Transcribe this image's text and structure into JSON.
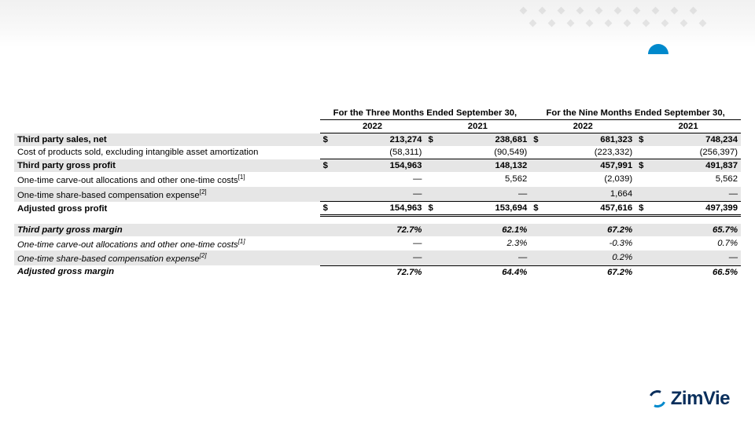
{
  "palette": {
    "row_band": "#e6e6e6",
    "text": "#000000",
    "border": "#000000",
    "accent_blue": "#0089cc",
    "logo_navy": "#0a2f5c",
    "background": "#ffffff"
  },
  "typography": {
    "base_pt": 11.3,
    "font_family": "Arial"
  },
  "headers": {
    "three_months": "For the Three Months Ended September 30,",
    "nine_months": "For the Nine Months Ended September 30,",
    "y2022": "2022",
    "y2021": "2021"
  },
  "currency": "$",
  "dash": "—",
  "rows": {
    "sales": {
      "label": "Third party sales, net",
      "vals": [
        "213,274",
        "238,681",
        "681,323",
        "748,234"
      ],
      "cur": [
        true,
        true,
        true,
        true
      ],
      "bold": true,
      "band": true
    },
    "cogs": {
      "label": "Cost of products sold, excluding intangible asset amortization",
      "vals": [
        "(58,311)",
        "(90,549)",
        "(223,332)",
        "(256,397)"
      ],
      "cur": [
        false,
        false,
        false,
        false
      ],
      "bold": false,
      "band": false,
      "underline": true
    },
    "gp": {
      "label": "Third party gross profit",
      "vals": [
        "154,963",
        "148,132",
        "457,991",
        "491,837"
      ],
      "cur": [
        true,
        false,
        false,
        true
      ],
      "bold": true,
      "band": true,
      "topline": true
    },
    "carve": {
      "label": "One-time carve-out allocations and other one-time costs",
      "sup": "[1]",
      "vals": [
        "—",
        "5,562",
        "(2,039)",
        "5,562"
      ],
      "cur": [
        false,
        false,
        false,
        false
      ],
      "bold": false,
      "band": false
    },
    "sbc": {
      "label": "One-time share-based compensation expense",
      "sup": "[2]",
      "vals": [
        "—",
        "—",
        "1,664",
        "—"
      ],
      "cur": [
        false,
        false,
        false,
        false
      ],
      "bold": false,
      "band": true,
      "underline": true
    },
    "agp": {
      "label": "Adjusted gross profit",
      "vals": [
        "154,963",
        "153,694",
        "457,616",
        "497,399"
      ],
      "cur": [
        true,
        true,
        true,
        true
      ],
      "bold": true,
      "band": false,
      "double": true,
      "topline": true
    },
    "gm": {
      "label": "Third party gross margin",
      "vals": [
        "72.7%",
        "62.1%",
        "67.2%",
        "65.7%"
      ],
      "bold": true,
      "italic": true,
      "band": true
    },
    "carvepct": {
      "label": "One-time carve-out allocations and other one-time costs",
      "sup": "[1]",
      "vals": [
        "—",
        "2.3%",
        "-0.3%",
        "0.7%"
      ],
      "italic": true,
      "band": false
    },
    "sbcpct": {
      "label": "One-time share-based compensation expense",
      "sup": "[2]",
      "vals": [
        "—",
        "—",
        "0.2%",
        "—"
      ],
      "italic": true,
      "band": true,
      "underline": true
    },
    "agm": {
      "label": "Adjusted gross margin",
      "vals": [
        "72.7%",
        "64.4%",
        "67.2%",
        "66.5%"
      ],
      "bold": true,
      "italic": true,
      "band": false,
      "topline": true
    }
  },
  "logo_text": "ZimVie"
}
